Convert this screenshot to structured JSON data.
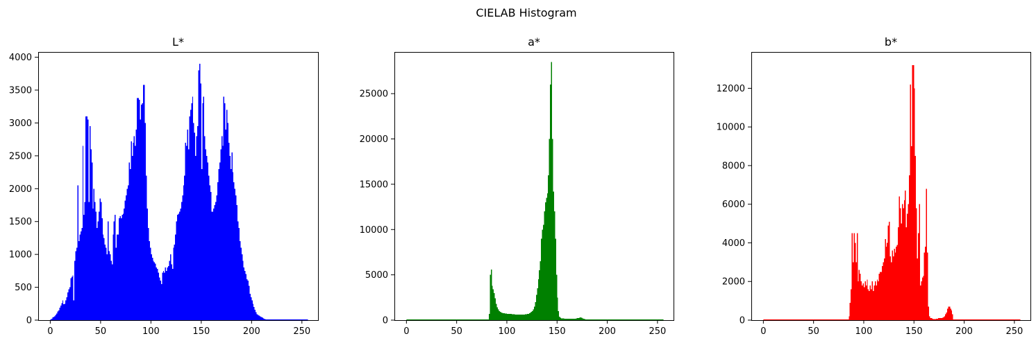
{
  "figure": {
    "suptitle": "CIELAB Histogram"
  },
  "chart_data": [
    {
      "type": "bar",
      "title": "L*",
      "xlabel": "",
      "ylabel": "",
      "xlim": [
        -12,
        266
      ],
      "ylim": [
        0,
        4080
      ],
      "xticks": [
        0,
        50,
        100,
        150,
        200,
        250
      ],
      "yticks": [
        0,
        500,
        1000,
        1500,
        2000,
        2500,
        3000,
        3500,
        4000
      ],
      "color": "#0000ff",
      "grid": false,
      "bins_start": 0,
      "bin_width": 1,
      "values": [
        0,
        20,
        40,
        50,
        60,
        80,
        100,
        130,
        150,
        190,
        220,
        260,
        300,
        240,
        250,
        300,
        350,
        420,
        470,
        500,
        640,
        660,
        680,
        300,
        900,
        1050,
        1100,
        2050,
        1200,
        1300,
        1350,
        1400,
        2650,
        1600,
        1800,
        3100,
        3100,
        3050,
        1800,
        2950,
        2600,
        2400,
        1700,
        2000,
        1800,
        1650,
        1400,
        1500,
        1650,
        1850,
        1800,
        1550,
        1300,
        1250,
        1150,
        1100,
        1000,
        1500,
        1050,
        1000,
        900,
        850,
        1300,
        1500,
        1600,
        1100,
        1300,
        1300,
        1550,
        1580,
        1550,
        1600,
        1620,
        1700,
        1820,
        1900,
        2000,
        2050,
        2400,
        2300,
        2720,
        2500,
        2700,
        2800,
        2650,
        2900,
        3380,
        3380,
        3350,
        3050,
        3280,
        3300,
        3580,
        3580,
        3000,
        2200,
        1700,
        1400,
        1200,
        1100,
        1000,
        950,
        900,
        880,
        860,
        800,
        780,
        720,
        650,
        600,
        550,
        720,
        750,
        720,
        800,
        750,
        800,
        820,
        900,
        1000,
        850,
        780,
        1100,
        1150,
        1300,
        1500,
        1600,
        1620,
        1650,
        1700,
        1800,
        1900,
        2050,
        2200,
        2700,
        2650,
        2900,
        2600,
        3100,
        3200,
        3300,
        3400,
        3000,
        2850,
        2500,
        2800,
        2950,
        3800,
        3900,
        3600,
        2300,
        3300,
        3400,
        2800,
        2600,
        2500,
        2400,
        2200,
        2050,
        1950,
        1650,
        1650,
        1700,
        1750,
        1800,
        1900,
        2100,
        2300,
        2400,
        2600,
        2800,
        2650,
        3400,
        3300,
        2900,
        3200,
        3000,
        2700,
        2500,
        2300,
        2550,
        2250,
        2100,
        2000,
        1900,
        1750,
        1500,
        1400,
        1200,
        1100,
        1000,
        900,
        800,
        750,
        700,
        620,
        600,
        520,
        400,
        350,
        300,
        250,
        200,
        160,
        120,
        90,
        80,
        70,
        60,
        50,
        40,
        30,
        20,
        15,
        10,
        5,
        0,
        0,
        0,
        0,
        0,
        0,
        0,
        0,
        0,
        0,
        0,
        0,
        0,
        0,
        0,
        0,
        0,
        0,
        0,
        0,
        0,
        0,
        0,
        0,
        0,
        0,
        0,
        0,
        0,
        0,
        0,
        0,
        0,
        0,
        0,
        0,
        0,
        0,
        0,
        0,
        0,
        0,
        0,
        0,
        0,
        0,
        0,
        0,
        0
      ]
    },
    {
      "type": "bar",
      "title": "a*",
      "xlabel": "",
      "ylabel": "",
      "xlim": [
        -12,
        266
      ],
      "ylim": [
        0,
        29600
      ],
      "xticks": [
        0,
        50,
        100,
        150,
        200,
        250
      ],
      "yticks": [
        0,
        5000,
        10000,
        15000,
        20000,
        25000
      ],
      "color": "#008000",
      "grid": false,
      "bins_start": 82,
      "bin_width": 1,
      "values": [
        700,
        5000,
        5600,
        3800,
        3400,
        3000,
        2400,
        1800,
        1400,
        1200,
        1000,
        900,
        850,
        800,
        780,
        760,
        740,
        720,
        700,
        700,
        690,
        680,
        670,
        660,
        650,
        640,
        630,
        620,
        610,
        600,
        600,
        600,
        600,
        610,
        620,
        630,
        640,
        650,
        680,
        700,
        760,
        820,
        900,
        1000,
        1200,
        1500,
        2000,
        2800,
        3500,
        4500,
        5500,
        6500,
        9000,
        10000,
        10500,
        12000,
        13000,
        13500,
        14000,
        16000,
        20000,
        26000,
        28500,
        20000,
        14200,
        12000,
        9000,
        5000,
        2500,
        1000,
        400,
        250,
        200,
        200,
        180,
        160,
        150,
        150,
        150,
        150,
        150,
        140,
        140,
        140,
        140,
        150,
        160,
        200,
        220,
        240,
        250,
        300,
        250,
        200,
        150,
        100,
        50,
        20,
        10,
        0,
        0,
        0,
        0
      ]
    },
    {
      "type": "bar",
      "title": "b*",
      "xlabel": "",
      "ylabel": "",
      "xlim": [
        -12,
        266
      ],
      "ylim": [
        0,
        13880
      ],
      "xticks": [
        0,
        50,
        100,
        150,
        200,
        250
      ],
      "yticks": [
        0,
        2000,
        4000,
        6000,
        8000,
        10000,
        12000
      ],
      "color": "#ff0000",
      "grid": false,
      "bins_start": 82,
      "bin_width": 1,
      "values": [
        0,
        0,
        0,
        200,
        900,
        1600,
        4500,
        3000,
        4500,
        4000,
        3000,
        4500,
        2000,
        2600,
        2400,
        2000,
        1800,
        1900,
        1700,
        2000,
        1800,
        2100,
        1600,
        1500,
        1800,
        1600,
        2000,
        1500,
        1800,
        2000,
        1800,
        2100,
        2000,
        2400,
        2500,
        2500,
        2800,
        3000,
        3200,
        4200,
        3800,
        4000,
        4900,
        5100,
        3300,
        3000,
        3600,
        3300,
        3700,
        3500,
        3800,
        3900,
        4800,
        6400,
        5800,
        5000,
        6000,
        5800,
        6200,
        6700,
        4800,
        5500,
        6000,
        7500,
        12200,
        9000,
        13200,
        13200,
        12000,
        8500,
        5800,
        3200,
        4500,
        6000,
        1800,
        2000,
        2200,
        2300,
        3500,
        3800,
        6800,
        3500,
        700,
        200,
        100,
        100,
        80,
        60,
        50,
        60,
        70,
        80,
        100,
        100,
        100,
        100,
        120,
        150,
        200,
        300,
        400,
        600,
        700,
        700,
        600,
        500,
        300,
        0,
        0,
        0,
        0
      ]
    }
  ]
}
